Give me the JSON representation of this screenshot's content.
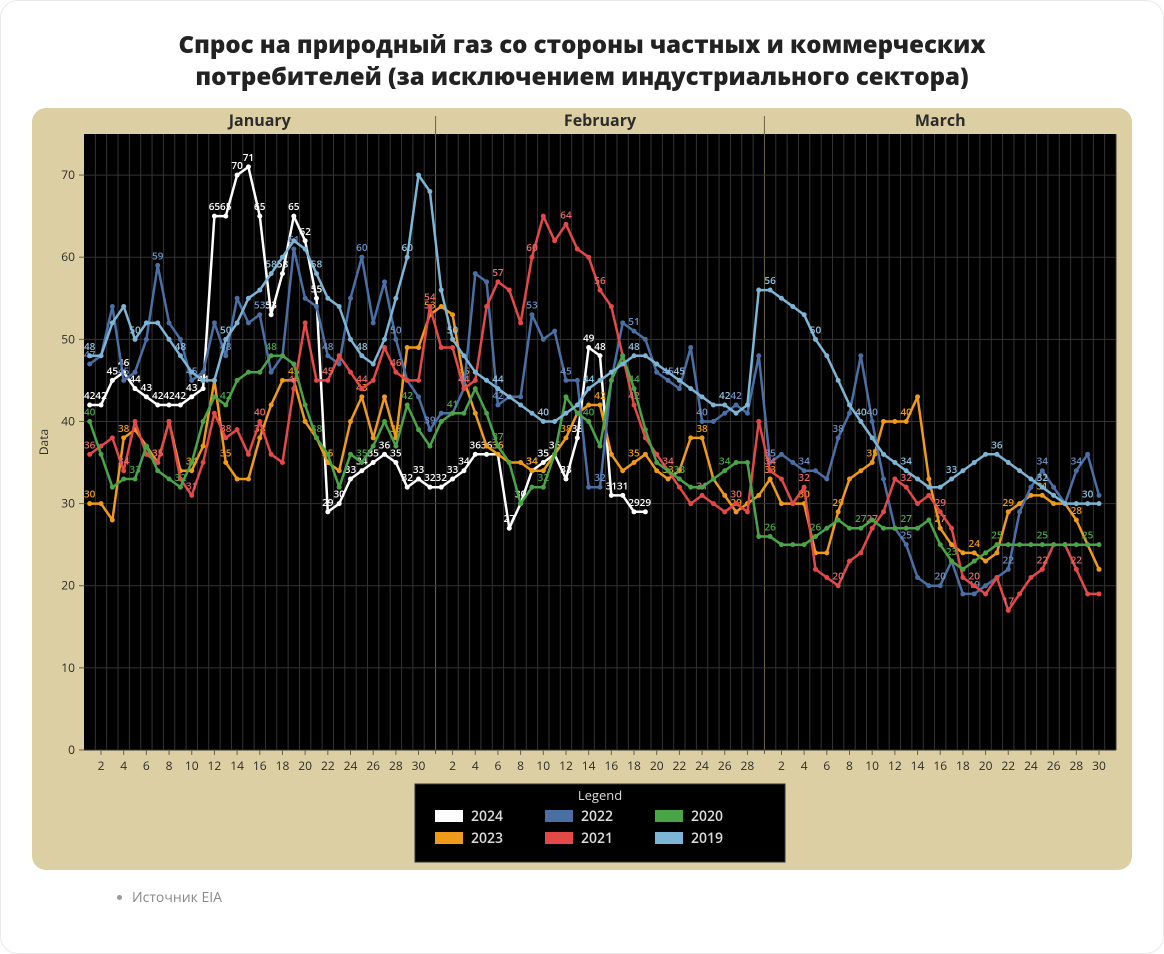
{
  "title": "Спрос на природный газ со стороны частных и коммерческих потребителей (за исключением индустриального сектора)",
  "footer": "Источник EIA",
  "chart": {
    "type": "line",
    "background_outer": "#dccfa3",
    "background_inner": "#000000",
    "grid_color": "#333333",
    "month_labels": [
      "January",
      "February",
      "March"
    ],
    "month_lengths": [
      31,
      29,
      31
    ],
    "month_label_color": "#2c2c2c",
    "month_label_fontsize": 16,
    "month_label_bold": true,
    "ylabel": "Data",
    "ylabel_color": "#2c2c2c",
    "ylabel_fontsize": 12,
    "ylim": [
      0,
      75
    ],
    "ytick_step": 10,
    "xtick_step": 2,
    "tick_fontsize": 12,
    "tick_color": "#2c2c2c",
    "datalabel_fontsize": 10,
    "marker_radius": 2.5,
    "line_width": 2.5,
    "legend": {
      "title": "Legend",
      "bg": "#000000",
      "border": "#333333",
      "text_color": "#dcdcdc",
      "title_color": "#dcdcdc",
      "fontsize": 14,
      "swatch_w": 28,
      "swatch_h": 12
    },
    "series": [
      {
        "name": "2024",
        "color": "#ffffff",
        "label_color": "#ffffff",
        "data": [
          42,
          42,
          45,
          46,
          44,
          43,
          42,
          42,
          42,
          43,
          44,
          65,
          65,
          70,
          71,
          65,
          53,
          58,
          65,
          62,
          55,
          29,
          30,
          33,
          34,
          35,
          36,
          35,
          32,
          33,
          32,
          32,
          33,
          34,
          36,
          36,
          36,
          27,
          30,
          34,
          35,
          36,
          33,
          38,
          49,
          48,
          31,
          31,
          29,
          29
        ],
        "label_every": 1
      },
      {
        "name": "2023",
        "color": "#f09a1a",
        "label_color": "#f09a1a",
        "data": [
          30,
          30,
          28,
          38,
          39,
          37,
          35,
          40,
          34,
          34,
          37,
          45,
          35,
          33,
          33,
          38,
          42,
          45,
          45,
          40,
          38,
          35,
          34,
          40,
          43,
          38,
          43,
          38,
          49,
          49,
          53,
          54,
          53,
          45,
          41,
          37,
          36,
          35,
          35,
          34,
          34,
          36,
          38,
          41,
          42,
          42,
          36,
          34,
          35,
          36,
          34,
          33,
          34,
          38,
          38,
          33,
          31,
          29,
          30,
          31,
          33,
          30,
          30,
          30,
          24,
          24,
          29,
          33,
          34,
          35,
          40,
          40,
          40,
          43,
          33,
          27,
          25,
          24,
          24,
          23,
          24,
          29,
          30,
          31,
          31,
          30,
          30,
          28,
          25,
          22
        ],
        "label_every": 3
      },
      {
        "name": "2022",
        "color": "#4a6fa4",
        "label_color": "#6d90c2",
        "data": [
          47,
          48,
          54,
          45,
          46,
          50,
          59,
          52,
          50,
          45,
          46,
          52,
          48,
          55,
          52,
          53,
          46,
          48,
          61,
          55,
          54,
          48,
          47,
          55,
          60,
          52,
          57,
          50,
          45,
          43,
          39,
          41,
          41,
          44,
          58,
          57,
          42,
          43,
          43,
          53,
          50,
          51,
          45,
          45,
          32,
          32,
          45,
          52,
          51,
          50,
          46,
          45,
          44,
          49,
          40,
          40,
          41,
          42,
          41,
          48,
          35,
          36,
          35,
          34,
          34,
          33,
          38,
          41,
          48,
          40,
          33,
          27,
          25,
          21,
          20,
          20,
          23,
          19,
          19,
          20,
          21,
          22,
          29,
          32,
          34,
          32,
          30,
          34,
          36,
          31
        ],
        "label_every": 3
      },
      {
        "name": "2021",
        "color": "#e54848",
        "label_color": "#e56a6a",
        "data": [
          36,
          37,
          38,
          34,
          40,
          36,
          35,
          40,
          33,
          31,
          35,
          41,
          38,
          39,
          36,
          40,
          36,
          35,
          44,
          52,
          45,
          45,
          48,
          46,
          44,
          45,
          49,
          46,
          45,
          45,
          54,
          49,
          49,
          44,
          45,
          54,
          57,
          56,
          52,
          60,
          65,
          62,
          64,
          61,
          60,
          56,
          54,
          48,
          42,
          38,
          36,
          34,
          32,
          30,
          31,
          30,
          29,
          30,
          29,
          40,
          34,
          33,
          30,
          32,
          22,
          21,
          20,
          23,
          24,
          27,
          29,
          33,
          32,
          30,
          31,
          29,
          27,
          21,
          20,
          19,
          21,
          17,
          19,
          21,
          22,
          25,
          25,
          22,
          19,
          19
        ],
        "label_every": 3
      },
      {
        "name": "2020",
        "color": "#4aa548",
        "label_color": "#4aa548",
        "data": [
          40,
          36,
          32,
          33,
          33,
          37,
          34,
          33,
          32,
          35,
          40,
          43,
          42,
          45,
          46,
          46,
          48,
          48,
          47,
          42,
          38,
          36,
          32,
          36,
          35,
          37,
          40,
          37,
          42,
          39,
          37,
          40,
          41,
          41,
          44,
          41,
          37,
          35,
          30,
          32,
          32,
          36,
          43,
          41,
          40,
          37,
          45,
          48,
          44,
          39,
          35,
          34,
          33,
          32,
          32,
          33,
          34,
          35,
          35,
          26,
          26,
          25,
          25,
          25,
          26,
          27,
          28,
          27,
          27,
          28,
          27,
          27,
          27,
          27,
          28,
          25,
          23,
          22,
          23,
          24,
          25,
          25,
          25,
          25,
          25,
          25,
          25,
          25,
          25,
          25
        ],
        "label_every": 4
      },
      {
        "name": "2019",
        "color": "#7db5d6",
        "label_color": "#8fc3e0",
        "data": [
          48,
          48,
          52,
          54,
          50,
          52,
          52,
          50,
          48,
          46,
          45,
          45,
          50,
          52,
          55,
          56,
          58,
          60,
          62,
          61,
          58,
          55,
          54,
          50,
          48,
          47,
          50,
          55,
          60,
          70,
          68,
          56,
          50,
          48,
          46,
          45,
          44,
          43,
          42,
          41,
          40,
          40,
          41,
          42,
          44,
          45,
          46,
          47,
          48,
          48,
          47,
          46,
          45,
          44,
          43,
          42,
          42,
          41,
          42,
          56,
          56,
          55,
          54,
          53,
          50,
          48,
          45,
          42,
          40,
          38,
          36,
          35,
          34,
          33,
          32,
          32,
          33,
          34,
          35,
          36,
          36,
          35,
          34,
          33,
          32,
          31,
          30,
          30,
          30,
          30
        ],
        "label_every": 4
      }
    ]
  }
}
